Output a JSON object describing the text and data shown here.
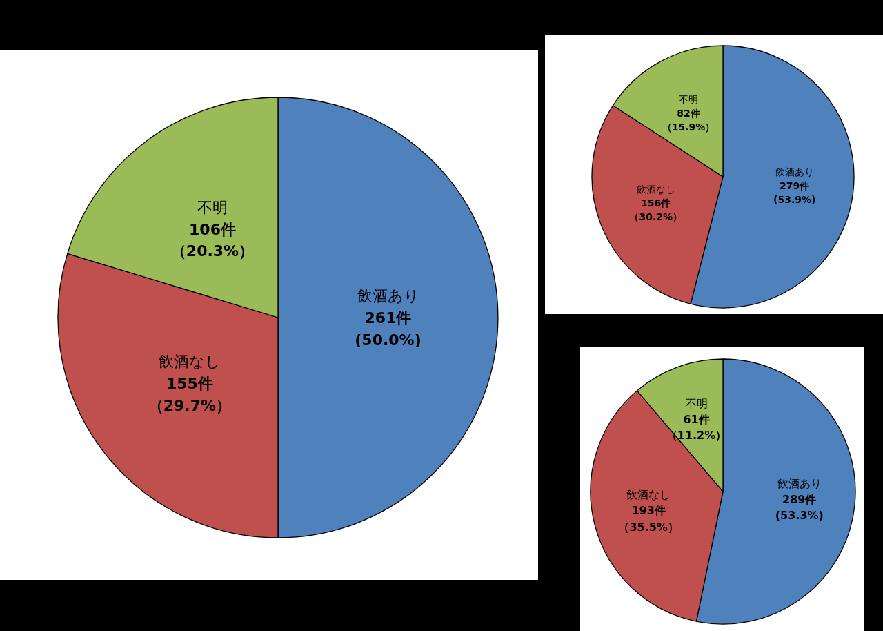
{
  "chart_data": [
    {
      "type": "pie",
      "categories": [
        "飲酒あり",
        "飲酒なし",
        "不明"
      ],
      "values": [
        261,
        155,
        106
      ],
      "colors": [
        "#4f81bd",
        "#c0504d",
        "#9bbb59"
      ],
      "value_labels": [
        "261件(50.0%)",
        "155件（29.7%）",
        "106件（20.3%）"
      ]
    },
    {
      "type": "pie",
      "categories": [
        "飲酒あり",
        "飲酒なし",
        "不明"
      ],
      "values": [
        279,
        156,
        82
      ],
      "colors": [
        "#4f81bd",
        "#c0504d",
        "#9bbb59"
      ],
      "value_labels": [
        "279件(53.9%)",
        "156件（30.2%）",
        "82件（15.9%）"
      ]
    },
    {
      "type": "pie",
      "categories": [
        "飲酒あり",
        "飲酒なし",
        "不明"
      ],
      "values": [
        289,
        193,
        61
      ],
      "colors": [
        "#4f81bd",
        "#c0504d",
        "#9bbb59"
      ],
      "value_labels": [
        "289件(53.3%)",
        "193件（35.5%）",
        "61件（11.2%）"
      ]
    }
  ]
}
